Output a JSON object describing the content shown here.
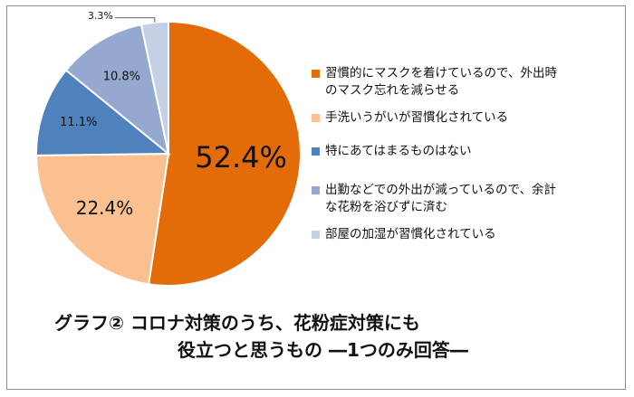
{
  "chart_data": {
    "type": "pie",
    "title_line1": "グラフ②  コロナ対策のうち、花粉症対策にも",
    "title_line2": "役立つと思うもの ―1つのみ回答―",
    "slices": [
      {
        "label": "習慣的にマスクを着けているので、外出時\nのマスク忘れを減らせる",
        "value": 52.4,
        "display": "52.4%",
        "color": "#E36C09"
      },
      {
        "label": "手洗いうがいが習慣化されている",
        "value": 22.4,
        "display": "22.4%",
        "color": "#FAC090"
      },
      {
        "label": "特にあてはまるものはない",
        "value": 11.1,
        "display": "11.1%",
        "color": "#4F81BD"
      },
      {
        "label": "出勤などでの外出が減っているので、余計\nな花粉を浴びずに済む",
        "value": 10.8,
        "display": "10.8%",
        "color": "#95A9D0"
      },
      {
        "label": "部屋の加湿が習慣化されている",
        "value": 3.3,
        "display": "3.3%",
        "color": "#C5D0E6"
      }
    ]
  }
}
